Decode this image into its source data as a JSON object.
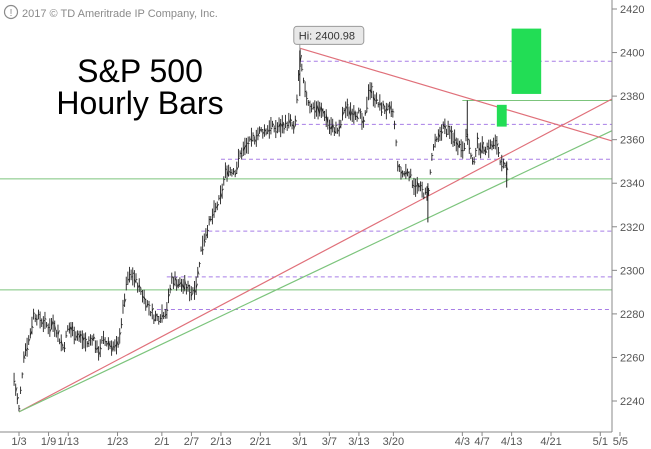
{
  "chart_data": {
    "type": "ohlc",
    "title_line1": "S&P 500",
    "title_line2": "Hourly Bars",
    "copyright": "2017 © TD Ameritrade IP Company, Inc.",
    "hi_label": "Hi: 2400.98",
    "hi_value": 2400.98,
    "hi_date": "2017-03-01",
    "ylim": [
      2228,
      2422
    ],
    "xlim": [
      "2017-01-02",
      "2017-05-05"
    ],
    "y_ticks": [
      2240,
      2260,
      2280,
      2300,
      2320,
      2340,
      2360,
      2380,
      2400,
      2420
    ],
    "x_ticks": [
      {
        "date": "2017-01-03",
        "label": "1/3"
      },
      {
        "date": "2017-01-09",
        "label": "1/9"
      },
      {
        "date": "2017-01-13",
        "label": "1/13"
      },
      {
        "date": "2017-01-23",
        "label": "1/23"
      },
      {
        "date": "2017-02-01",
        "label": "2/1"
      },
      {
        "date": "2017-02-07",
        "label": "2/7"
      },
      {
        "date": "2017-02-13",
        "label": "2/13"
      },
      {
        "date": "2017-02-21",
        "label": "2/21"
      },
      {
        "date": "2017-03-01",
        "label": "3/1"
      },
      {
        "date": "2017-03-07",
        "label": "3/7"
      },
      {
        "date": "2017-03-13",
        "label": "3/13"
      },
      {
        "date": "2017-03-20",
        "label": "3/20"
      },
      {
        "date": "2017-04-03",
        "label": "4/3"
      },
      {
        "date": "2017-04-07",
        "label": "4/7"
      },
      {
        "date": "2017-04-13",
        "label": "4/13"
      },
      {
        "date": "2017-04-21",
        "label": "4/21"
      },
      {
        "date": "2017-05-01",
        "label": "5/1"
      },
      {
        "date": "2017-05-05",
        "label": "5/5"
      }
    ],
    "price_path": [
      [
        "2017-01-02",
        2250
      ],
      [
        "2017-01-03",
        2236
      ],
      [
        "2017-01-04",
        2262
      ],
      [
        "2017-01-05",
        2268
      ],
      [
        "2017-01-06",
        2280
      ],
      [
        "2017-01-09",
        2274
      ],
      [
        "2017-01-10",
        2276
      ],
      [
        "2017-01-11",
        2270
      ],
      [
        "2017-01-12",
        2264
      ],
      [
        "2017-01-13",
        2274
      ],
      [
        "2017-01-17",
        2266
      ],
      [
        "2017-01-18",
        2270
      ],
      [
        "2017-01-19",
        2262
      ],
      [
        "2017-01-20",
        2268
      ],
      [
        "2017-01-23",
        2264
      ],
      [
        "2017-01-24",
        2280
      ],
      [
        "2017-01-25",
        2296
      ],
      [
        "2017-01-26",
        2298
      ],
      [
        "2017-01-27",
        2294
      ],
      [
        "2017-01-30",
        2280
      ],
      [
        "2017-01-31",
        2278
      ],
      [
        "2017-02-01",
        2280
      ],
      [
        "2017-02-02",
        2282
      ],
      [
        "2017-02-03",
        2296
      ],
      [
        "2017-02-06",
        2292
      ],
      [
        "2017-02-07",
        2290
      ],
      [
        "2017-02-08",
        2294
      ],
      [
        "2017-02-09",
        2310
      ],
      [
        "2017-02-10",
        2318
      ],
      [
        "2017-02-13",
        2334
      ],
      [
        "2017-02-14",
        2346
      ],
      [
        "2017-02-15",
        2346
      ],
      [
        "2017-02-16",
        2346
      ],
      [
        "2017-02-17",
        2354
      ],
      [
        "2017-02-21",
        2364
      ],
      [
        "2017-02-22",
        2364
      ],
      [
        "2017-02-23",
        2366
      ],
      [
        "2017-02-24",
        2365
      ],
      [
        "2017-02-27",
        2368
      ],
      [
        "2017-02-28",
        2364
      ],
      [
        "2017-03-01",
        2398
      ],
      [
        "2017-03-02",
        2382
      ],
      [
        "2017-03-03",
        2376
      ],
      [
        "2017-03-06",
        2372
      ],
      [
        "2017-03-07",
        2366
      ],
      [
        "2017-03-08",
        2365
      ],
      [
        "2017-03-09",
        2364
      ],
      [
        "2017-03-10",
        2374
      ],
      [
        "2017-03-13",
        2372
      ],
      [
        "2017-03-14",
        2366
      ],
      [
        "2017-03-15",
        2384
      ],
      [
        "2017-03-16",
        2380
      ],
      [
        "2017-03-17",
        2376
      ],
      [
        "2017-03-20",
        2372
      ],
      [
        "2017-03-21",
        2346
      ],
      [
        "2017-03-22",
        2344
      ],
      [
        "2017-03-23",
        2346
      ],
      [
        "2017-03-24",
        2340
      ],
      [
        "2017-03-27",
        2334
      ],
      [
        "2017-03-28",
        2356
      ],
      [
        "2017-03-29",
        2360
      ],
      [
        "2017-03-30",
        2366
      ],
      [
        "2017-03-31",
        2364
      ],
      [
        "2017-04-03",
        2356
      ],
      [
        "2017-04-04",
        2362
      ],
      [
        "2017-04-05",
        2348
      ],
      [
        "2017-04-06",
        2358
      ],
      [
        "2017-04-07",
        2356
      ],
      [
        "2017-04-10",
        2358
      ],
      [
        "2017-04-11",
        2348
      ],
      [
        "2017-04-12",
        2346
      ]
    ],
    "horizontal_lines": [
      {
        "y": 2342,
        "style": "solid",
        "color": "#7cc47c"
      },
      {
        "y": 2291,
        "style": "solid",
        "color": "#7cc47c"
      },
      {
        "y": 2378,
        "style": "solid",
        "color": "#7cc47c",
        "x_start": "2017-04-03"
      },
      {
        "y": 2396,
        "style": "dashed",
        "color": "#a87ee6",
        "x_start": "2017-03-01"
      },
      {
        "y": 2367,
        "style": "dashed",
        "color": "#a87ee6",
        "x_start": "2017-02-28"
      },
      {
        "y": 2351,
        "style": "dashed",
        "color": "#a87ee6",
        "x_start": "2017-02-13"
      },
      {
        "y": 2318,
        "style": "dashed",
        "color": "#a87ee6",
        "x_start": "2017-02-09"
      },
      {
        "y": 2297,
        "style": "dashed",
        "color": "#a87ee6",
        "x_start": "2017-02-02"
      },
      {
        "y": 2282,
        "style": "dashed",
        "color": "#a87ee6",
        "x_start": "2017-01-31"
      }
    ],
    "trendlines": [
      {
        "from": [
          "2017-01-03",
          2235
        ],
        "to": [
          "2017-05-07",
          2383
        ],
        "color": "#e0707a"
      },
      {
        "from": [
          "2017-01-03",
          2235
        ],
        "to": [
          "2017-05-07",
          2368
        ],
        "color": "#7cc47c"
      },
      {
        "from": [
          "2017-03-01",
          2402
        ],
        "to": [
          "2017-05-07",
          2357
        ],
        "color": "#e0707a"
      }
    ],
    "target_boxes": [
      {
        "x": [
          "2017-04-13",
          "2017-04-19"
        ],
        "y": [
          2381,
          2411
        ],
        "color": "#22dd55"
      },
      {
        "x": [
          "2017-04-10",
          "2017-04-12"
        ],
        "y": [
          2366,
          2376
        ],
        "color": "#22dd55"
      }
    ],
    "colors": {
      "bars": "#222222",
      "grid": "#dddddd",
      "axis": "#888888"
    }
  }
}
